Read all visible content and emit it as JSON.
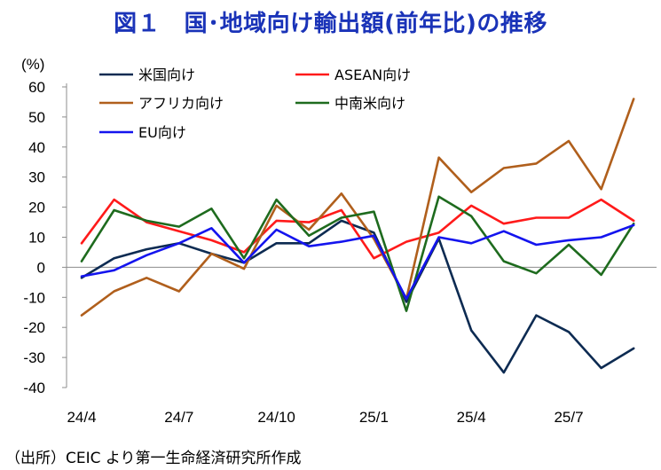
{
  "title": "図１　国･地域向け輸出額(前年比)の推移",
  "source": "（出所）CEIC より第一生命経済研究所作成",
  "chart_data": {
    "type": "line",
    "title": "図１　国･地域向け輸出額(前年比)の推移",
    "ylabel": "(%)",
    "ylim": [
      -40,
      60
    ],
    "yticks": [
      60,
      50,
      40,
      30,
      20,
      10,
      0,
      -10,
      -20,
      -30,
      -40
    ],
    "ytick_labels": [
      "60",
      "50",
      "40",
      "30",
      "20",
      "10",
      "0",
      "-10",
      "-20",
      "-30",
      "-40"
    ],
    "x": [
      "24/4",
      "24/5",
      "24/6",
      "24/7",
      "24/8",
      "24/9",
      "24/10",
      "24/11",
      "24/12",
      "25/1",
      "25/2",
      "25/3",
      "25/4",
      "25/5",
      "25/6",
      "25/7",
      "25/8",
      "25/9"
    ],
    "xtick_labels": [
      {
        "index": 0,
        "label": "24/4"
      },
      {
        "index": 3,
        "label": "24/7"
      },
      {
        "index": 6,
        "label": "24/10"
      },
      {
        "index": 9,
        "label": "25/1"
      },
      {
        "index": 12,
        "label": "25/4"
      },
      {
        "index": 15,
        "label": "25/7"
      }
    ],
    "grid": false,
    "legend_position": "top-left",
    "series": [
      {
        "name": "米国向け",
        "color": "#0d2b52",
        "values": [
          -3.5,
          3,
          6,
          8,
          4.5,
          1.5,
          8,
          8,
          15.5,
          11.5,
          -11.5,
          9.5,
          -21,
          -35,
          -16,
          -21.5,
          -33.5,
          -27
        ]
      },
      {
        "name": "ASEAN向け",
        "color": "#ff1a1a",
        "values": [
          8,
          22.5,
          15,
          12,
          9,
          5,
          15.5,
          15,
          19,
          3,
          8.5,
          11.5,
          20.5,
          14.5,
          16.5,
          16.5,
          22.5,
          15.5
        ]
      },
      {
        "name": "アフリカ向け",
        "color": "#b05f1c",
        "values": [
          -16,
          -8,
          -3.5,
          -8,
          4.5,
          -0.5,
          20.5,
          12.5,
          24.5,
          9.5,
          -10.5,
          36.5,
          25,
          33,
          34.5,
          42,
          26,
          56
        ]
      },
      {
        "name": "中南米向け",
        "color": "#1e6b1e",
        "values": [
          2,
          19,
          15.5,
          13.5,
          19.5,
          3,
          22.5,
          10.5,
          16.5,
          18.5,
          -14.5,
          23.5,
          17,
          2,
          -2,
          7.5,
          -2.5,
          14.5
        ]
      },
      {
        "name": "EU向け",
        "color": "#1414ee",
        "values": [
          -3,
          -1,
          4,
          8,
          13,
          1.5,
          12.5,
          7,
          8.5,
          10.5,
          -10.5,
          10,
          8,
          12,
          7.5,
          9,
          10,
          14
        ]
      }
    ]
  }
}
